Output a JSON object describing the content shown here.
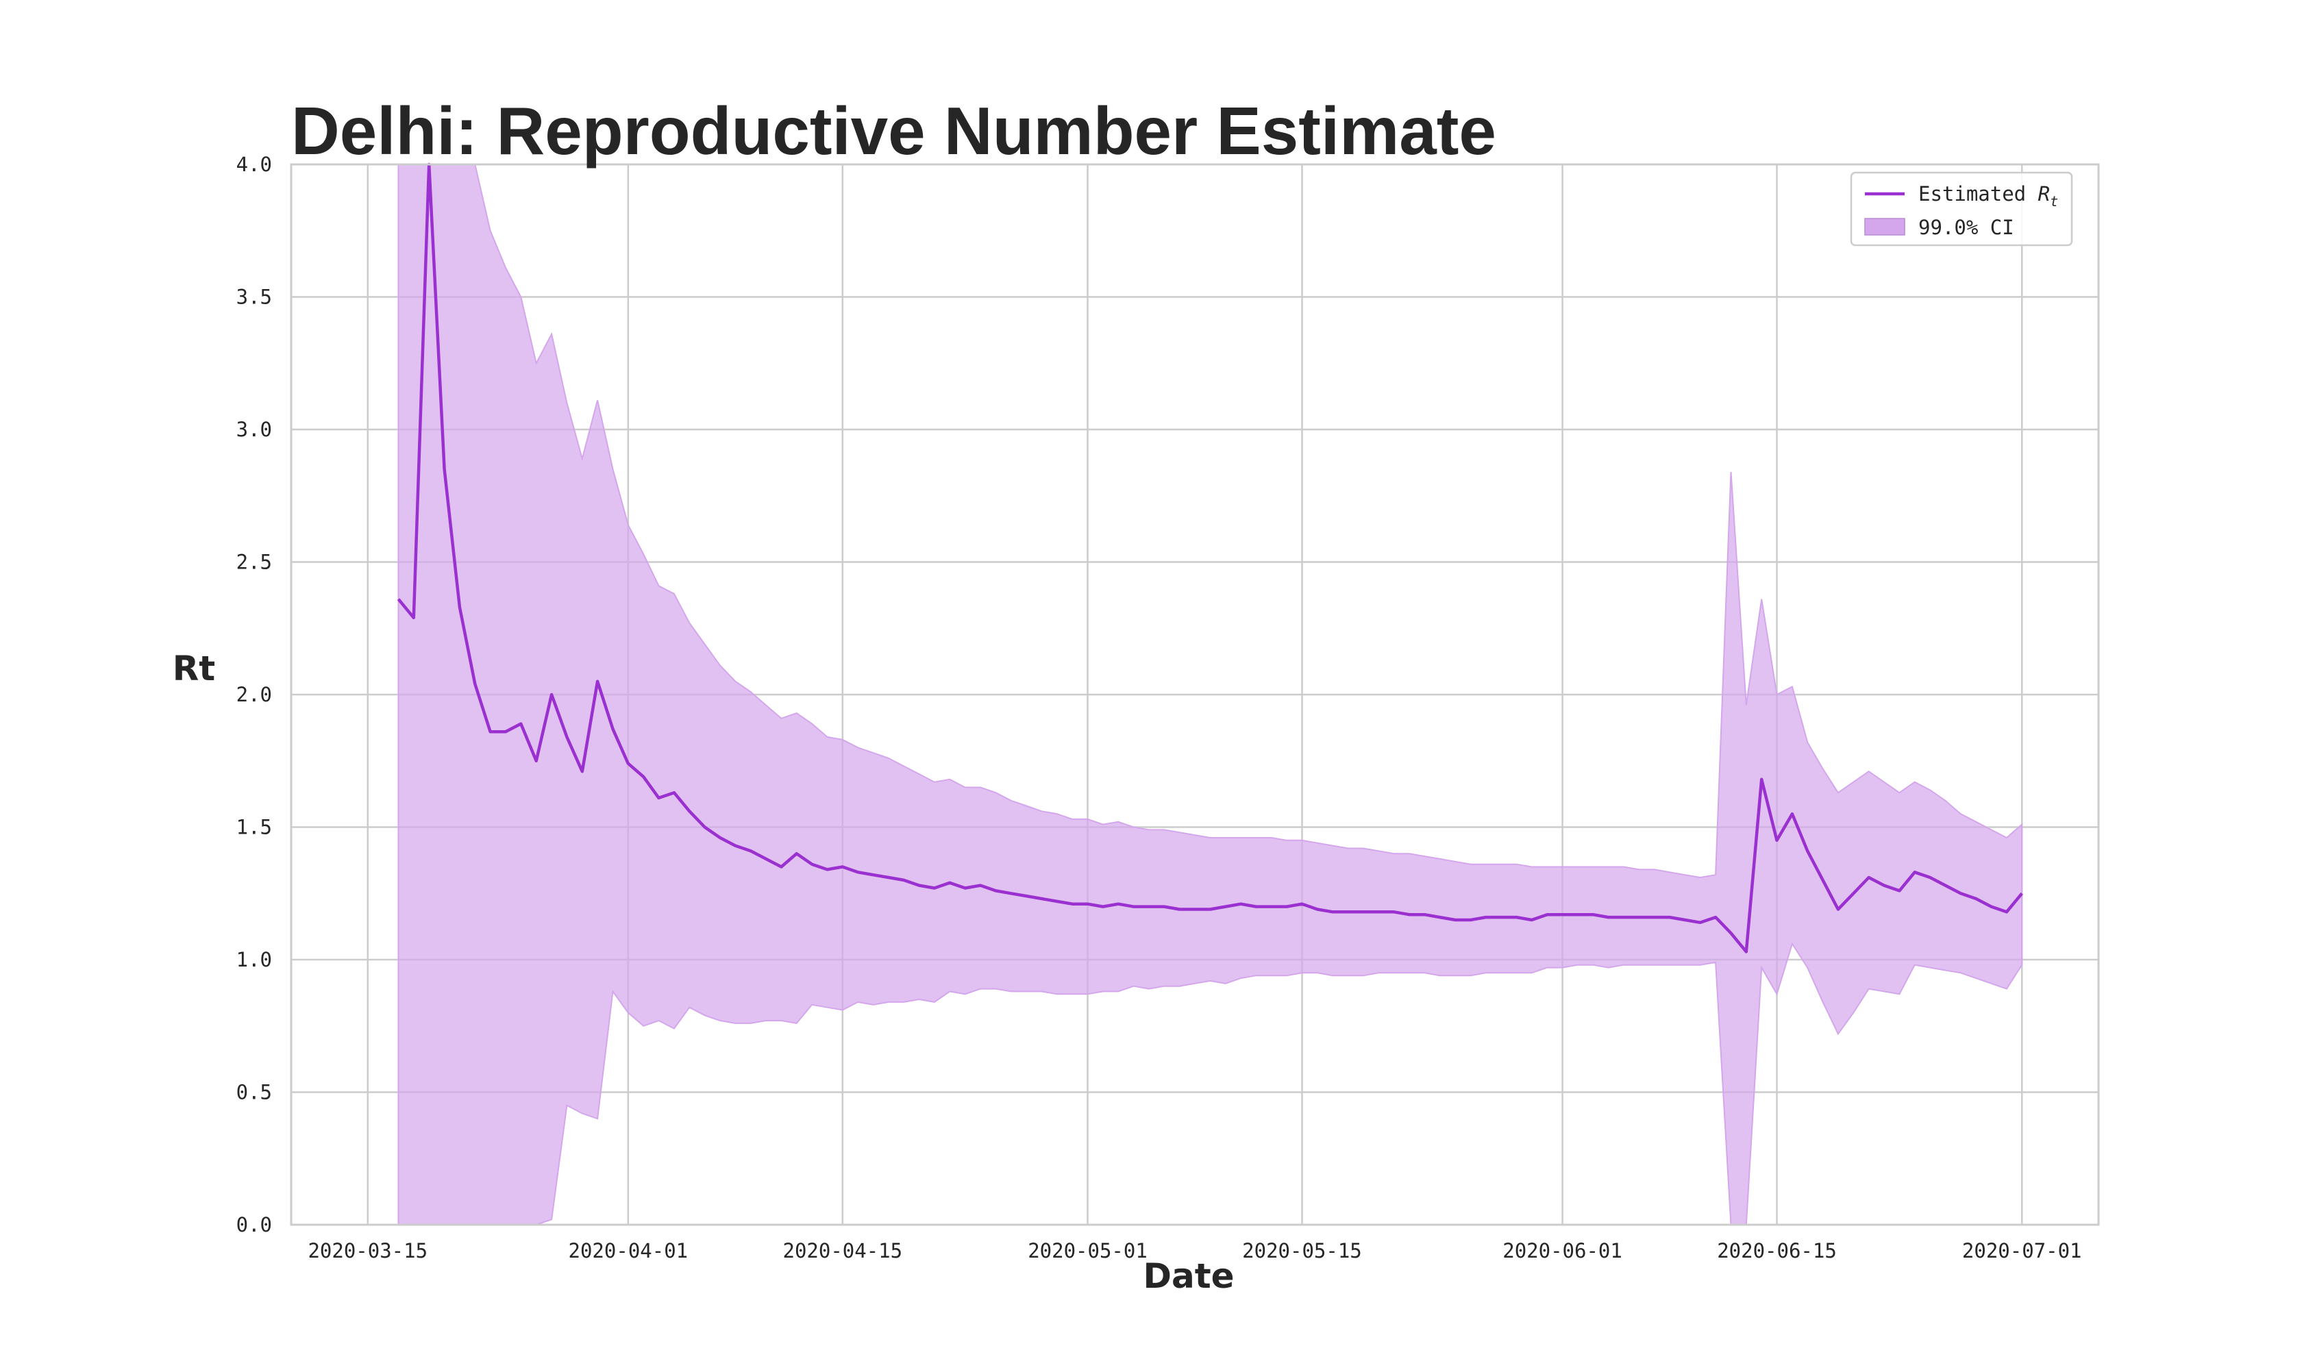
{
  "chart_data": {
    "type": "line",
    "title": "Delhi: Reproductive Number Estimate",
    "xlabel": "Date",
    "ylabel": "Rt",
    "ylim": [
      0.0,
      4.0
    ],
    "yticks": [
      "0.0",
      "0.5",
      "1.0",
      "1.5",
      "2.0",
      "2.5",
      "3.0",
      "3.5",
      "4.0"
    ],
    "xlim": [
      "2020-03-10",
      "2020-07-06"
    ],
    "xticks": [
      "2020-03-15",
      "2020-04-01",
      "2020-04-15",
      "2020-05-01",
      "2020-05-15",
      "2020-06-01",
      "2020-06-15",
      "2020-07-01"
    ],
    "grid": true,
    "legend_position": "top-right",
    "legend": {
      "line_label_prefix": "Estimated ",
      "line_label_symbol": "R",
      "line_label_subscript": "t",
      "band_label": "99.0% CI"
    },
    "colors": {
      "line": "#9b30d0",
      "band": "#d4a6ec"
    },
    "series": [
      {
        "x": [
          "2020-03-17",
          "2020-03-18",
          "2020-03-19",
          "2020-03-20",
          "2020-03-21",
          "2020-03-22",
          "2020-03-23",
          "2020-03-24",
          "2020-03-25",
          "2020-03-26",
          "2020-03-27",
          "2020-03-28",
          "2020-03-29",
          "2020-03-30",
          "2020-03-31",
          "2020-04-01",
          "2020-04-02",
          "2020-04-03",
          "2020-04-04",
          "2020-04-05",
          "2020-04-06",
          "2020-04-07",
          "2020-04-08",
          "2020-04-09",
          "2020-04-10",
          "2020-04-11",
          "2020-04-12",
          "2020-04-13",
          "2020-04-14",
          "2020-04-15",
          "2020-04-16",
          "2020-04-17",
          "2020-04-18",
          "2020-04-19",
          "2020-04-20",
          "2020-04-21",
          "2020-04-22",
          "2020-04-23",
          "2020-04-24",
          "2020-04-25",
          "2020-04-26",
          "2020-04-27",
          "2020-04-28",
          "2020-04-29",
          "2020-04-30",
          "2020-05-01",
          "2020-05-02",
          "2020-05-03",
          "2020-05-04",
          "2020-05-05",
          "2020-05-06",
          "2020-05-07",
          "2020-05-08",
          "2020-05-09",
          "2020-05-10",
          "2020-05-11",
          "2020-05-12",
          "2020-05-13",
          "2020-05-14",
          "2020-05-15",
          "2020-05-16",
          "2020-05-17",
          "2020-05-18",
          "2020-05-19",
          "2020-05-20",
          "2020-05-21",
          "2020-05-22",
          "2020-05-23",
          "2020-05-24",
          "2020-05-25",
          "2020-05-26",
          "2020-05-27",
          "2020-05-28",
          "2020-05-29",
          "2020-05-30",
          "2020-05-31",
          "2020-06-01",
          "2020-06-02",
          "2020-06-03",
          "2020-06-04",
          "2020-06-05",
          "2020-06-06",
          "2020-06-07",
          "2020-06-08",
          "2020-06-09",
          "2020-06-10",
          "2020-06-11",
          "2020-06-12",
          "2020-06-13",
          "2020-06-14",
          "2020-06-15",
          "2020-06-16",
          "2020-06-17",
          "2020-06-18",
          "2020-06-19",
          "2020-06-20",
          "2020-06-21",
          "2020-06-22",
          "2020-06-23",
          "2020-06-24",
          "2020-06-25",
          "2020-06-26",
          "2020-06-27",
          "2020-06-28",
          "2020-06-29",
          "2020-06-30",
          "2020-07-01"
        ],
        "values": [
          2.36,
          2.29,
          4.0,
          2.85,
          2.33,
          2.04,
          1.86,
          1.86,
          1.89,
          1.75,
          2.0,
          1.84,
          1.71,
          2.05,
          1.87,
          1.74,
          1.69,
          1.61,
          1.63,
          1.56,
          1.5,
          1.46,
          1.43,
          1.41,
          1.38,
          1.35,
          1.4,
          1.36,
          1.34,
          1.35,
          1.33,
          1.32,
          1.31,
          1.3,
          1.28,
          1.27,
          1.29,
          1.27,
          1.28,
          1.26,
          1.25,
          1.24,
          1.23,
          1.22,
          1.21,
          1.21,
          1.2,
          1.21,
          1.2,
          1.2,
          1.2,
          1.19,
          1.19,
          1.19,
          1.2,
          1.21,
          1.2,
          1.2,
          1.2,
          1.21,
          1.19,
          1.18,
          1.18,
          1.18,
          1.18,
          1.18,
          1.17,
          1.17,
          1.16,
          1.15,
          1.15,
          1.16,
          1.16,
          1.16,
          1.15,
          1.17,
          1.17,
          1.17,
          1.17,
          1.16,
          1.16,
          1.16,
          1.16,
          1.16,
          1.15,
          1.14,
          1.16,
          1.1,
          1.03,
          1.68,
          1.45,
          1.55,
          1.41,
          1.3,
          1.19,
          1.25,
          1.31,
          1.28,
          1.26,
          1.33,
          1.31,
          1.28,
          1.25,
          1.23,
          1.2,
          1.18,
          1.25
        ],
        "ci_upper": [
          4.0,
          4.0,
          4.0,
          4.0,
          4.0,
          4.0,
          3.75,
          3.61,
          3.5,
          3.25,
          3.36,
          3.1,
          2.89,
          3.11,
          2.85,
          2.64,
          2.53,
          2.41,
          2.38,
          2.27,
          2.19,
          2.11,
          2.05,
          2.01,
          1.96,
          1.91,
          1.93,
          1.89,
          1.84,
          1.83,
          1.8,
          1.78,
          1.76,
          1.73,
          1.7,
          1.67,
          1.68,
          1.65,
          1.65,
          1.63,
          1.6,
          1.58,
          1.56,
          1.55,
          1.53,
          1.53,
          1.51,
          1.52,
          1.5,
          1.49,
          1.49,
          1.48,
          1.47,
          1.46,
          1.46,
          1.46,
          1.46,
          1.46,
          1.45,
          1.45,
          1.44,
          1.43,
          1.42,
          1.42,
          1.41,
          1.4,
          1.4,
          1.39,
          1.38,
          1.37,
          1.36,
          1.36,
          1.36,
          1.36,
          1.35,
          1.35,
          1.35,
          1.35,
          1.35,
          1.35,
          1.35,
          1.34,
          1.34,
          1.33,
          1.32,
          1.31,
          1.32,
          2.84,
          1.96,
          2.36,
          2.0,
          2.03,
          1.82,
          1.72,
          1.63,
          1.67,
          1.71,
          1.67,
          1.63,
          1.67,
          1.64,
          1.6,
          1.55,
          1.52,
          1.49,
          1.46,
          1.51
        ],
        "ci_lower": [
          0.0,
          0.0,
          0.0,
          0.0,
          0.0,
          0.0,
          0.0,
          0.0,
          0.0,
          0.0,
          0.02,
          0.45,
          0.42,
          0.4,
          0.88,
          0.8,
          0.75,
          0.77,
          0.74,
          0.82,
          0.79,
          0.77,
          0.76,
          0.76,
          0.77,
          0.77,
          0.76,
          0.83,
          0.82,
          0.81,
          0.84,
          0.83,
          0.84,
          0.84,
          0.85,
          0.84,
          0.88,
          0.87,
          0.89,
          0.89,
          0.88,
          0.88,
          0.88,
          0.87,
          0.87,
          0.87,
          0.88,
          0.88,
          0.9,
          0.89,
          0.9,
          0.9,
          0.91,
          0.92,
          0.91,
          0.93,
          0.94,
          0.94,
          0.94,
          0.95,
          0.95,
          0.94,
          0.94,
          0.94,
          0.95,
          0.95,
          0.95,
          0.95,
          0.94,
          0.94,
          0.94,
          0.95,
          0.95,
          0.95,
          0.95,
          0.97,
          0.97,
          0.98,
          0.98,
          0.97,
          0.98,
          0.98,
          0.98,
          0.98,
          0.98,
          0.98,
          0.99,
          0.0,
          0.0,
          0.97,
          0.87,
          1.06,
          0.97,
          0.84,
          0.72,
          0.8,
          0.89,
          0.88,
          0.87,
          0.98,
          0.97,
          0.96,
          0.95,
          0.93,
          0.91,
          0.89,
          0.98
        ]
      }
    ]
  }
}
